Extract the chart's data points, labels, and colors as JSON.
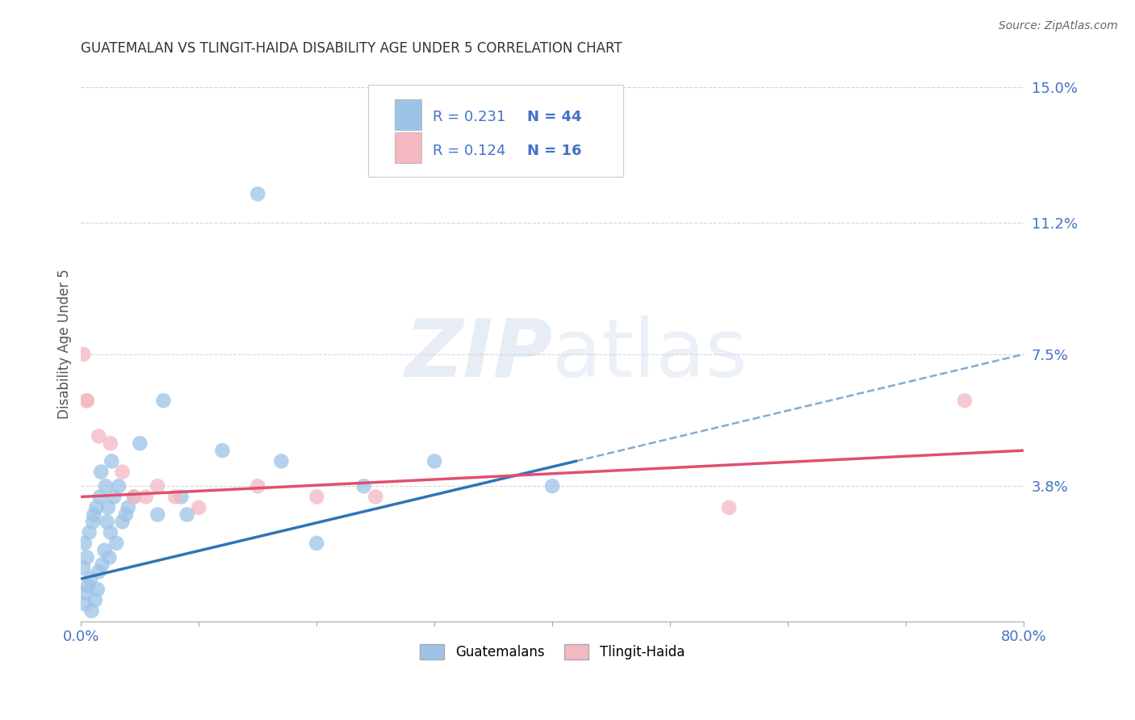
{
  "title": "GUATEMALAN VS TLINGIT-HAIDA DISABILITY AGE UNDER 5 CORRELATION CHART",
  "source": "Source: ZipAtlas.com",
  "ylabel": "Disability Age Under 5",
  "xlim": [
    0,
    80
  ],
  "ylim": [
    0,
    15.6
  ],
  "yticks": [
    0,
    3.8,
    7.5,
    11.2,
    15.0
  ],
  "ytick_labels": [
    "",
    "3.8%",
    "7.5%",
    "11.2%",
    "15.0%"
  ],
  "xtick_positions": [
    0,
    10,
    20,
    30,
    40,
    50,
    60,
    70,
    80
  ],
  "guatemalan_x": [
    0.2,
    0.3,
    0.3,
    0.4,
    0.5,
    0.6,
    0.7,
    0.8,
    0.9,
    1.0,
    1.1,
    1.2,
    1.3,
    1.4,
    1.5,
    1.6,
    1.7,
    1.8,
    2.0,
    2.1,
    2.2,
    2.3,
    2.4,
    2.5,
    2.6,
    2.8,
    3.0,
    3.2,
    3.5,
    3.8,
    4.0,
    4.5,
    5.0,
    6.5,
    7.0,
    8.5,
    9.0,
    12.0,
    15.0,
    20.0,
    24.0,
    30.0,
    40.0,
    17.0
  ],
  "guatemalan_y": [
    1.5,
    0.5,
    2.2,
    0.8,
    1.8,
    1.0,
    2.5,
    1.2,
    0.3,
    2.8,
    3.0,
    0.6,
    3.2,
    0.9,
    1.4,
    3.5,
    4.2,
    1.6,
    2.0,
    3.8,
    2.8,
    3.2,
    1.8,
    2.5,
    4.5,
    3.5,
    2.2,
    3.8,
    2.8,
    3.0,
    3.2,
    3.5,
    5.0,
    3.0,
    6.2,
    3.5,
    3.0,
    4.8,
    12.0,
    2.2,
    3.8,
    4.5,
    3.8,
    4.5
  ],
  "tlingit_x": [
    0.2,
    0.5,
    0.5,
    1.5,
    2.5,
    3.5,
    4.5,
    5.5,
    6.5,
    8.0,
    10.0,
    15.0,
    20.0,
    25.0,
    55.0,
    75.0
  ],
  "tlingit_y": [
    7.5,
    6.2,
    6.2,
    5.2,
    5.0,
    4.2,
    3.5,
    3.5,
    3.8,
    3.5,
    3.2,
    3.8,
    3.5,
    3.5,
    3.2,
    6.2
  ],
  "guatemalan_color": "#9dc3e6",
  "tlingit_color": "#f4b8c1",
  "guatemalan_line_color": "#2e75b6",
  "tlingit_line_color": "#e05070",
  "blue_line_start_x": 0,
  "blue_line_start_y": 1.2,
  "blue_line_end_solid_x": 42,
  "blue_line_end_solid_y": 4.5,
  "blue_line_end_dash_x": 80,
  "blue_line_end_dash_y": 7.5,
  "pink_line_start_x": 0,
  "pink_line_start_y": 3.5,
  "pink_line_end_x": 80,
  "pink_line_end_y": 4.8,
  "r_guatemalan": "0.231",
  "n_guatemalan": "44",
  "r_tlingit": "0.124",
  "n_tlingit": "16",
  "watermark_zip": "ZIP",
  "watermark_atlas": "atlas",
  "background_color": "#ffffff",
  "grid_color": "#cccccc",
  "tick_label_color": "#4472c4",
  "legend_r_color": "#4472c4",
  "legend_n_color": "#4472c4"
}
